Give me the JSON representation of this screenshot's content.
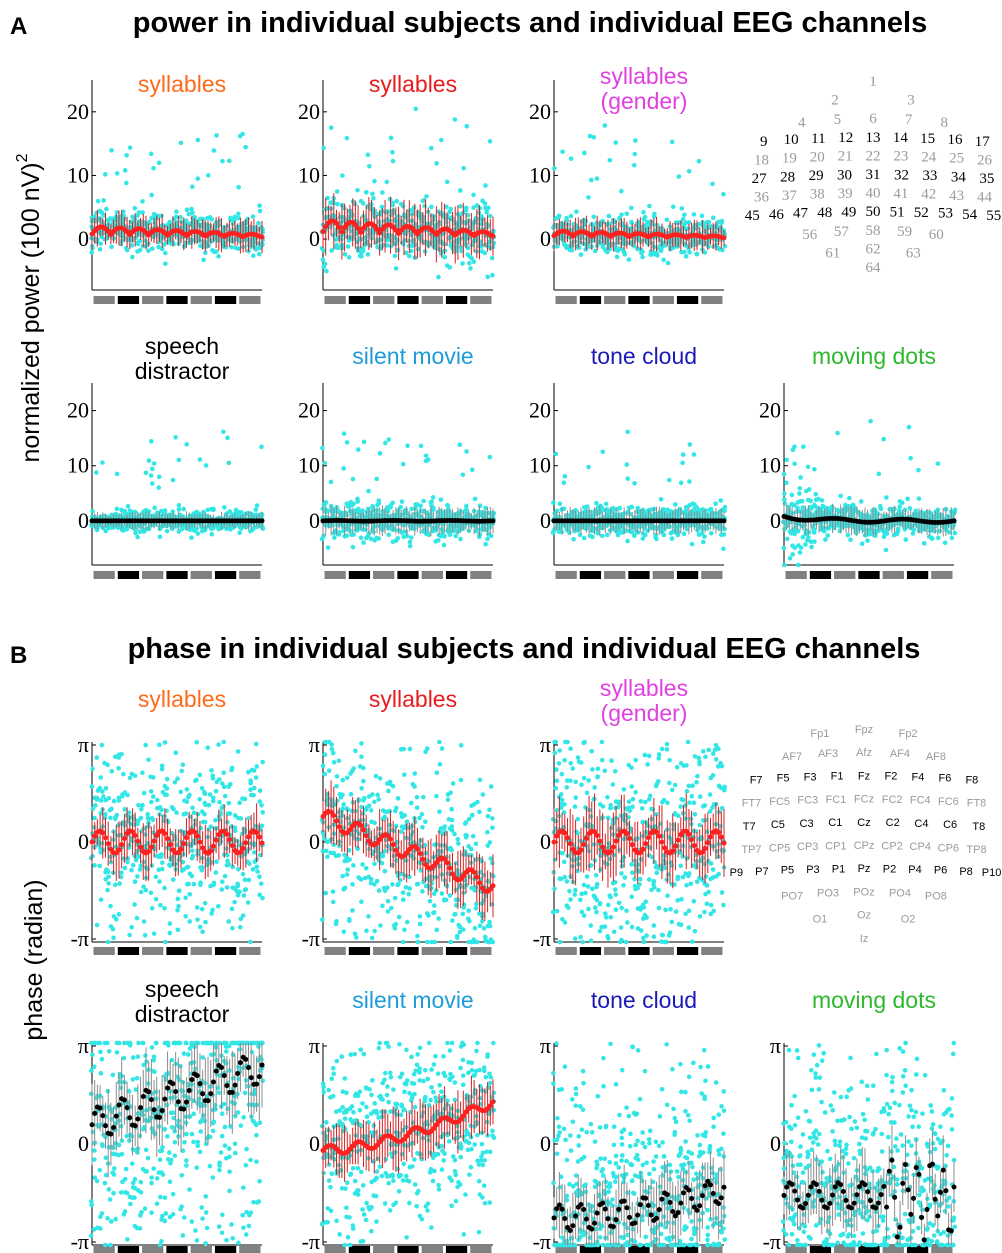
{
  "figure": {
    "panels": [
      {
        "letter": "A",
        "title": "power in individual subjects and individual EEG channels"
      },
      {
        "letter": "B",
        "title": "phase in individual subjects and individual EEG channels"
      }
    ]
  },
  "chart_data": [
    {
      "type": "scatter",
      "panel": "A",
      "title": "syllables",
      "title_color": "#ff6a1a",
      "ylabel": "normalized power (100 nV)",
      "ylabel_sup": "2",
      "y_ticks": [
        "0",
        "10",
        "20"
      ],
      "ylim": [
        -8,
        25
      ],
      "dot_color": "#33e6e6",
      "mean_color": "#ff2020",
      "n_channels": 64,
      "variant": "power_modulated",
      "level": 2.0,
      "noise": 1.6
    },
    {
      "type": "scatter",
      "panel": "A",
      "title": "syllables",
      "title_color": "#e81c1c",
      "y_ticks": [
        "0",
        "10",
        "20"
      ],
      "ylim": [
        -8,
        25
      ],
      "dot_color": "#33e6e6",
      "mean_color": "#ff2020",
      "n_channels": 64,
      "variant": "power_modulated",
      "level": 3.0,
      "noise": 2.5
    },
    {
      "type": "scatter",
      "panel": "A",
      "title": "syllables",
      "title2": "(gender)",
      "title_color": "#e040e0",
      "y_ticks": [
        "0",
        "10",
        "20"
      ],
      "ylim": [
        -8,
        25
      ],
      "dot_color": "#33e6e6",
      "mean_color": "#ff2020",
      "n_channels": 64,
      "variant": "power_modulated",
      "level": 1.3,
      "noise": 1.5
    },
    {
      "type": "scatter",
      "panel": "A",
      "title": "speech",
      "title2": "distractor",
      "title_color": "#000000",
      "y_ticks": [
        "0",
        "10",
        "20"
      ],
      "ylim": [
        -8,
        25
      ],
      "dot_color": "#33e6e6",
      "mean_color": "#000000",
      "n_channels": 64,
      "variant": "power_flat",
      "level": 0.0,
      "noise": 1.0
    },
    {
      "type": "scatter",
      "panel": "A",
      "title": "silent movie",
      "title_color": "#1f9dd9",
      "y_ticks": [
        "0",
        "10",
        "20"
      ],
      "ylim": [
        -8,
        25
      ],
      "dot_color": "#33e6e6",
      "mean_color": "#000000",
      "n_channels": 64,
      "variant": "power_flat",
      "level": 0.3,
      "noise": 1.6
    },
    {
      "type": "scatter",
      "panel": "A",
      "title": "tone cloud",
      "title_color": "#1a1ab8",
      "y_ticks": [
        "0",
        "10",
        "20"
      ],
      "ylim": [
        -8,
        25
      ],
      "dot_color": "#33e6e6",
      "mean_color": "#000000",
      "n_channels": 64,
      "variant": "power_flat",
      "level": 0.0,
      "noise": 1.5
    },
    {
      "type": "scatter",
      "panel": "A",
      "title": "moving dots",
      "title_color": "#2db82d",
      "y_ticks": [
        "0",
        "10",
        "20"
      ],
      "ylim": [
        -8,
        25
      ],
      "dot_color": "#33e6e6",
      "mean_color": "#000000",
      "n_channels": 64,
      "variant": "power_decay",
      "level": 1.0,
      "noise": 1.5
    },
    {
      "type": "scatter",
      "panel": "B",
      "title": "syllables",
      "title_color": "#ff6a1a",
      "ylabel": "phase (radian)",
      "y_ticks": [
        "-π",
        "0",
        "π"
      ],
      "ylim": [
        -3.1416,
        3.1416
      ],
      "dot_color": "#33e6e6",
      "mean_color": "#ff2020",
      "n_channels": 64,
      "variant": "phase_zero",
      "level": 0.0,
      "noise": 1.2
    },
    {
      "type": "scatter",
      "panel": "B",
      "title": "syllables",
      "title_color": "#e81c1c",
      "y_ticks": [
        "-π",
        "0",
        "π"
      ],
      "ylim": [
        -3.1416,
        3.1416
      ],
      "dot_color": "#33e6e6",
      "mean_color": "#ff2020",
      "n_channels": 64,
      "variant": "phase_drift",
      "level": -0.8,
      "noise": 1.3
    },
    {
      "type": "scatter",
      "panel": "B",
      "title": "syllables",
      "title2": "(gender)",
      "title_color": "#e040e0",
      "y_ticks": [
        "-π",
        "0",
        "π"
      ],
      "ylim": [
        -3.1416,
        3.1416
      ],
      "dot_color": "#33e6e6",
      "mean_color": "#ff2020",
      "n_channels": 64,
      "variant": "phase_zero",
      "level": 0.0,
      "noise": 1.6
    },
    {
      "type": "scatter",
      "panel": "B",
      "title": "speech",
      "title2": "distractor",
      "title_color": "#000000",
      "y_ticks": [
        "-π",
        "0",
        "π"
      ],
      "ylim": [
        -3.1416,
        3.1416
      ],
      "dot_color": "#33e6e6",
      "mean_color": "#000000",
      "n_channels": 64,
      "variant": "phase_rise",
      "level": 2.0,
      "noise": 1.8
    },
    {
      "type": "scatter",
      "panel": "B",
      "title": "silent movie",
      "title_color": "#1f9dd9",
      "y_ticks": [
        "-π",
        "0",
        "π"
      ],
      "ylim": [
        -3.1416,
        3.1416
      ],
      "dot_color": "#33e6e6",
      "mean_color": "#ff2020",
      "n_channels": 64,
      "variant": "phase_rise_small",
      "level": 1.2,
      "noise": 1.3
    },
    {
      "type": "scatter",
      "panel": "B",
      "title": "tone cloud",
      "title_color": "#1a1ab8",
      "y_ticks": [
        "-π",
        "0",
        "π"
      ],
      "ylim": [
        -3.1416,
        3.1416
      ],
      "dot_color": "#33e6e6",
      "mean_color": "#000000",
      "n_channels": 64,
      "variant": "phase_low",
      "level": -2.3,
      "noise": 1.5
    },
    {
      "type": "scatter",
      "panel": "B",
      "title": "moving dots",
      "title_color": "#2db82d",
      "y_ticks": [
        "-π",
        "0",
        "π"
      ],
      "ylim": [
        -3.1416,
        3.1416
      ],
      "dot_color": "#33e6e6",
      "mean_color": "#000000",
      "n_channels": 64,
      "variant": "phase_low_mid",
      "level": -1.6,
      "noise": 1.5
    }
  ],
  "electrode_maps": [
    {
      "panel": "A",
      "rows": [
        [
          {
            "t": "1",
            "k": 0
          }
        ],
        [
          {
            "t": "2",
            "k": 0
          },
          {
            "t": "3",
            "k": 0
          }
        ],
        [
          {
            "t": "4",
            "k": 0
          },
          {
            "t": "5",
            "k": 0
          },
          {
            "t": "6",
            "k": 0
          },
          {
            "t": "7",
            "k": 0
          },
          {
            "t": "8",
            "k": 0
          }
        ],
        [
          {
            "t": "9",
            "k": 1
          },
          {
            "t": "10",
            "k": 1
          },
          {
            "t": "11",
            "k": 1
          },
          {
            "t": "12",
            "k": 1
          },
          {
            "t": "13",
            "k": 1
          },
          {
            "t": "14",
            "k": 1
          },
          {
            "t": "15",
            "k": 1
          },
          {
            "t": "16",
            "k": 1
          },
          {
            "t": "17",
            "k": 1
          }
        ],
        [
          {
            "t": "18",
            "k": 0
          },
          {
            "t": "19",
            "k": 0
          },
          {
            "t": "20",
            "k": 0
          },
          {
            "t": "21",
            "k": 0
          },
          {
            "t": "22",
            "k": 0
          },
          {
            "t": "23",
            "k": 0
          },
          {
            "t": "24",
            "k": 0
          },
          {
            "t": "25",
            "k": 0
          },
          {
            "t": "26",
            "k": 0
          }
        ],
        [
          {
            "t": "27",
            "k": 1
          },
          {
            "t": "28",
            "k": 1
          },
          {
            "t": "29",
            "k": 1
          },
          {
            "t": "30",
            "k": 1
          },
          {
            "t": "31",
            "k": 1
          },
          {
            "t": "32",
            "k": 1
          },
          {
            "t": "33",
            "k": 1
          },
          {
            "t": "34",
            "k": 1
          },
          {
            "t": "35",
            "k": 1
          }
        ],
        [
          {
            "t": "36",
            "k": 0
          },
          {
            "t": "37",
            "k": 0
          },
          {
            "t": "38",
            "k": 0
          },
          {
            "t": "39",
            "k": 0
          },
          {
            "t": "40",
            "k": 0
          },
          {
            "t": "41",
            "k": 0
          },
          {
            "t": "42",
            "k": 0
          },
          {
            "t": "43",
            "k": 0
          },
          {
            "t": "44",
            "k": 0
          }
        ],
        [
          {
            "t": "45",
            "k": 1
          },
          {
            "t": "46",
            "k": 1
          },
          {
            "t": "47",
            "k": 1
          },
          {
            "t": "48",
            "k": 1
          },
          {
            "t": "49",
            "k": 1
          },
          {
            "t": "50",
            "k": 1
          },
          {
            "t": "51",
            "k": 1
          },
          {
            "t": "52",
            "k": 1
          },
          {
            "t": "53",
            "k": 1
          },
          {
            "t": "54",
            "k": 1
          },
          {
            "t": "55",
            "k": 1
          }
        ],
        [
          {
            "t": "56",
            "k": 0
          },
          {
            "t": "57",
            "k": 0
          },
          {
            "t": "58",
            "k": 0
          },
          {
            "t": "59",
            "k": 0
          },
          {
            "t": "60",
            "k": 0
          }
        ],
        [
          {
            "t": "61",
            "k": 0
          },
          {
            "t": "62",
            "k": 0
          },
          {
            "t": "63",
            "k": 0
          }
        ],
        [
          {
            "t": "64",
            "k": 0
          }
        ]
      ]
    },
    {
      "panel": "B",
      "rows": [
        [
          {
            "t": "Fp1",
            "k": 0
          },
          {
            "t": "Fpz",
            "k": 0
          },
          {
            "t": "Fp2",
            "k": 0
          }
        ],
        [
          {
            "t": "AF7",
            "k": 0
          },
          {
            "t": "AF3",
            "k": 0
          },
          {
            "t": "Afz",
            "k": 0
          },
          {
            "t": "AF4",
            "k": 0
          },
          {
            "t": "AF8",
            "k": 0
          }
        ],
        [
          {
            "t": "F7",
            "k": 1
          },
          {
            "t": "F5",
            "k": 1
          },
          {
            "t": "F3",
            "k": 1
          },
          {
            "t": "F1",
            "k": 1
          },
          {
            "t": "Fz",
            "k": 1
          },
          {
            "t": "F2",
            "k": 1
          },
          {
            "t": "F4",
            "k": 1
          },
          {
            "t": "F6",
            "k": 1
          },
          {
            "t": "F8",
            "k": 1
          }
        ],
        [
          {
            "t": "FT7",
            "k": 0
          },
          {
            "t": "FC5",
            "k": 0
          },
          {
            "t": "FC3",
            "k": 0
          },
          {
            "t": "FC1",
            "k": 0
          },
          {
            "t": "FCz",
            "k": 0
          },
          {
            "t": "FC2",
            "k": 0
          },
          {
            "t": "FC4",
            "k": 0
          },
          {
            "t": "FC6",
            "k": 0
          },
          {
            "t": "FT8",
            "k": 0
          }
        ],
        [
          {
            "t": "T7",
            "k": 1
          },
          {
            "t": "C5",
            "k": 1
          },
          {
            "t": "C3",
            "k": 1
          },
          {
            "t": "C1",
            "k": 1
          },
          {
            "t": "Cz",
            "k": 1
          },
          {
            "t": "C2",
            "k": 1
          },
          {
            "t": "C4",
            "k": 1
          },
          {
            "t": "C6",
            "k": 1
          },
          {
            "t": "T8",
            "k": 1
          }
        ],
        [
          {
            "t": "TP7",
            "k": 0
          },
          {
            "t": "CP5",
            "k": 0
          },
          {
            "t": "CP3",
            "k": 0
          },
          {
            "t": "CP1",
            "k": 0
          },
          {
            "t": "CPz",
            "k": 0
          },
          {
            "t": "CP2",
            "k": 0
          },
          {
            "t": "CP4",
            "k": 0
          },
          {
            "t": "CP6",
            "k": 0
          },
          {
            "t": "TP8",
            "k": 0
          }
        ],
        [
          {
            "t": "P9",
            "k": 1
          },
          {
            "t": "P7",
            "k": 1
          },
          {
            "t": "P5",
            "k": 1
          },
          {
            "t": "P3",
            "k": 1
          },
          {
            "t": "P1",
            "k": 1
          },
          {
            "t": "Pz",
            "k": 1
          },
          {
            "t": "P2",
            "k": 1
          },
          {
            "t": "P4",
            "k": 1
          },
          {
            "t": "P6",
            "k": 1
          },
          {
            "t": "P8",
            "k": 1
          },
          {
            "t": "P10",
            "k": 1
          }
        ],
        [
          {
            "t": "PO7",
            "k": 0
          },
          {
            "t": "PO3",
            "k": 0
          },
          {
            "t": "POz",
            "k": 0
          },
          {
            "t": "PO4",
            "k": 0
          },
          {
            "t": "PO8",
            "k": 0
          }
        ],
        [
          {
            "t": "O1",
            "k": 0
          },
          {
            "t": "Oz",
            "k": 0
          },
          {
            "t": "O2",
            "k": 0
          }
        ],
        [
          {
            "t": "Iz",
            "k": 0
          }
        ]
      ]
    }
  ],
  "colors": {
    "cyan_dots": "#33e6e6",
    "error_bar_gray": "#8c8c8c",
    "strip_gray": "#808080",
    "strip_black": "#000000",
    "electrode_gray": "#9a9a9a",
    "electrode_black": "#000000"
  }
}
